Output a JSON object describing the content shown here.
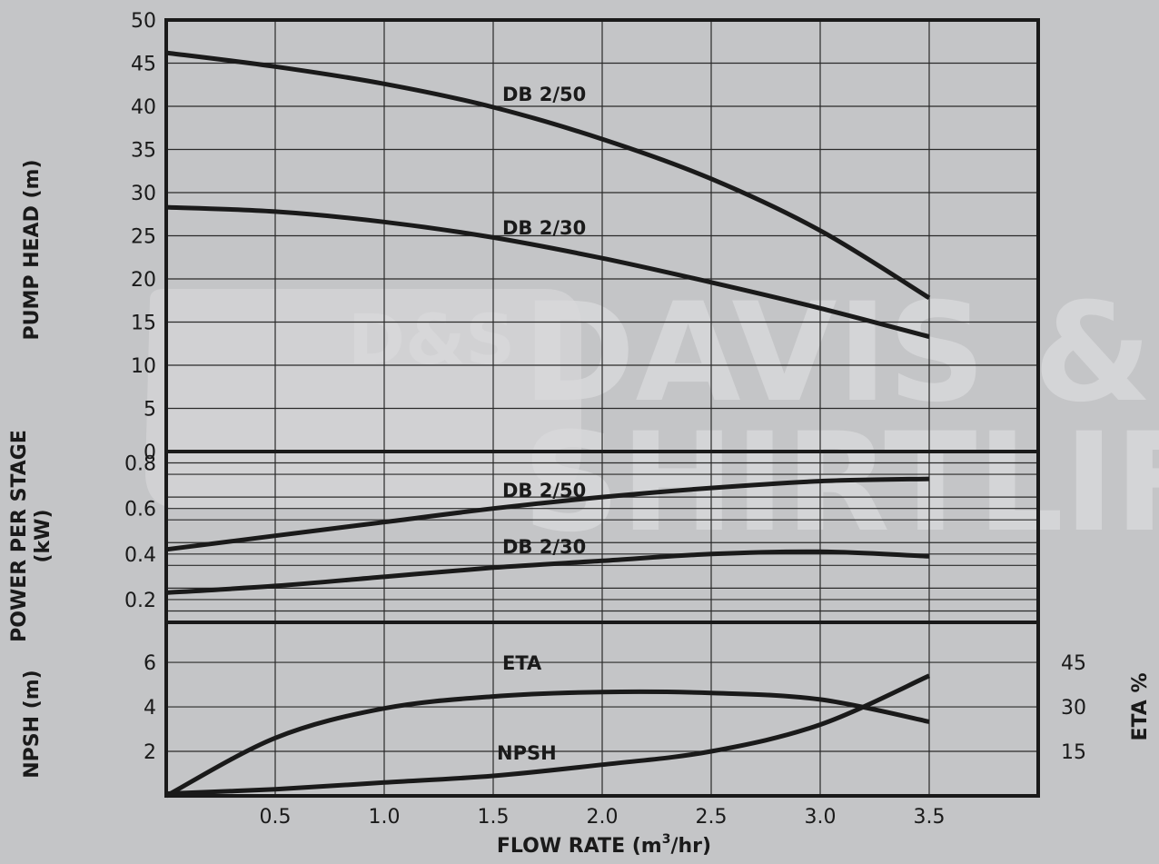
{
  "watermark": {
    "logo": "D&S",
    "line1": "DAVIS &",
    "line2": "SHIRTLIFF"
  },
  "chart_data": [
    {
      "type": "line",
      "panel": "head",
      "ylabel": "PUMP HEAD (m)",
      "ylim": [
        0,
        50
      ],
      "yticks": [
        0,
        5,
        10,
        15,
        20,
        25,
        30,
        35,
        40,
        45,
        50
      ],
      "series": [
        {
          "name": "DB 2/50",
          "x": [
            0,
            0.5,
            1.0,
            1.5,
            2.0,
            2.5,
            3.0,
            3.5
          ],
          "y": [
            46.2,
            44.6,
            42.6,
            39.9,
            36.2,
            31.6,
            25.6,
            17.8
          ]
        },
        {
          "name": "DB 2/30",
          "x": [
            0,
            0.5,
            1.0,
            1.5,
            2.0,
            2.5,
            3.0,
            3.5
          ],
          "y": [
            28.3,
            27.8,
            26.6,
            24.8,
            22.4,
            19.6,
            16.6,
            13.3
          ]
        }
      ]
    },
    {
      "type": "line",
      "panel": "power",
      "ylabel": "POWER PER STAGE (kW)",
      "ylim": [
        0.1,
        0.85
      ],
      "yticks": [
        0.2,
        0.4,
        0.6,
        0.8
      ],
      "series": [
        {
          "name": "DB 2/50",
          "x": [
            0,
            0.5,
            1.0,
            1.5,
            2.0,
            2.5,
            3.0,
            3.5
          ],
          "y": [
            0.42,
            0.48,
            0.54,
            0.6,
            0.65,
            0.69,
            0.72,
            0.73
          ]
        },
        {
          "name": "DB 2/30",
          "x": [
            0,
            0.5,
            1.0,
            1.5,
            2.0,
            2.5,
            3.0,
            3.5
          ],
          "y": [
            0.23,
            0.26,
            0.3,
            0.34,
            0.37,
            0.4,
            0.41,
            0.39
          ]
        }
      ]
    },
    {
      "type": "line",
      "panel": "npsh_eta",
      "ylabel": "NPSH (m)",
      "ylabel_right": "ETA %",
      "ylim": [
        0,
        7.8
      ],
      "yticks": [
        2,
        4,
        6
      ],
      "yticks_right": [
        15,
        30,
        45
      ],
      "series": [
        {
          "name": "ETA",
          "x": [
            0,
            0.5,
            1.0,
            1.5,
            2.0,
            2.5,
            3.0,
            3.5
          ],
          "y": [
            0,
            19.5,
            29.5,
            33.5,
            35,
            34.7,
            32.5,
            25
          ]
        },
        {
          "name": "NPSH",
          "x": [
            0,
            0.5,
            1.0,
            1.5,
            2.0,
            2.5,
            3.0,
            3.5
          ],
          "y": [
            0.1,
            0.3,
            0.6,
            0.9,
            1.4,
            2.0,
            3.2,
            5.4
          ]
        }
      ]
    }
  ],
  "x_axis": {
    "xlabel_main": "FLOW RATE (m",
    "xlabel_sup": "3",
    "xlabel_end": "/hr)",
    "xlim": [
      0,
      4.0
    ],
    "ticks": [
      0.5,
      1.0,
      1.5,
      2.0,
      2.5,
      3.0,
      3.5
    ],
    "tick_labels": [
      "0.5",
      "1.0",
      "1.5",
      "2.0",
      "2.5",
      "3.0",
      "3.5"
    ]
  }
}
